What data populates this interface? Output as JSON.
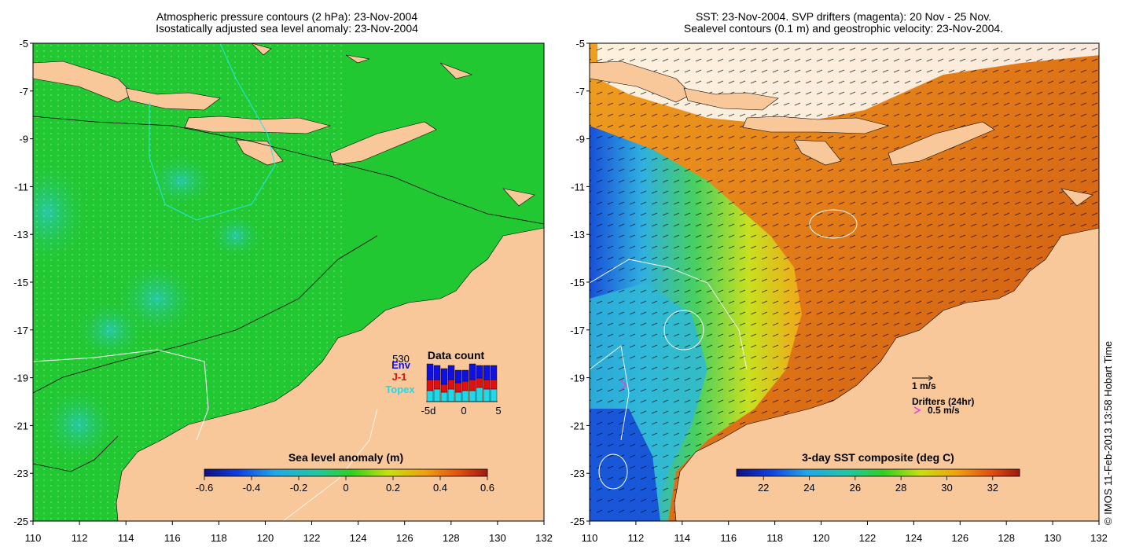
{
  "left_panel": {
    "title_line1": "Atmospheric pressure contours (2 hPa): 23-Nov-2004",
    "title_line2": "Isostatically adjusted sea level anomaly: 23-Nov-2004",
    "colorbar_title": "Sea level anomaly (m)",
    "colorbar_ticks": [
      "-0.6",
      "-0.4",
      "-0.2",
      "0",
      "0.2",
      "0.4",
      "0.6"
    ],
    "data_count": {
      "title": "Data count",
      "max_label": "530",
      "satellites": [
        {
          "name": "Env",
          "color": "#1010e0"
        },
        {
          "name": "J-1",
          "color": "#e01010"
        },
        {
          "name": "Topex",
          "color": "#20d8e8"
        }
      ],
      "x_ticks": [
        "-5d",
        "0",
        "5"
      ]
    }
  },
  "right_panel": {
    "title_line1": "SST: 23-Nov-2004. SVP drifters (magenta): 20 Nov - 25 Nov.",
    "title_line2": "Sealevel contours (0.1 m) and geostrophic velocity: 23-Nov-2004.",
    "colorbar_title": "3-day SST composite (deg C)",
    "colorbar_ticks": [
      "22",
      "24",
      "26",
      "28",
      "30",
      "32"
    ],
    "velocity_scale_label": "1 m/s",
    "drifters_label": "Drifters (24hr)",
    "drifter_scale_label": "0.5 m/s",
    "drifter_color": "#e040e0"
  },
  "axes": {
    "x_ticks": [
      "110",
      "112",
      "114",
      "116",
      "118",
      "120",
      "122",
      "124",
      "126",
      "128",
      "130",
      "132"
    ],
    "y_ticks": [
      "-5",
      "-7",
      "-9",
      "-11",
      "-13",
      "-15",
      "-17",
      "-19",
      "-21",
      "-23",
      "-25"
    ]
  },
  "credit": "© IMOS 11-Feb-2013 13:58 Hobart Time",
  "colors": {
    "land": "#f8c89a",
    "sla_ocean": "#22c832",
    "sst_warm": "#e88218",
    "sst_cool": "#2070e0"
  }
}
